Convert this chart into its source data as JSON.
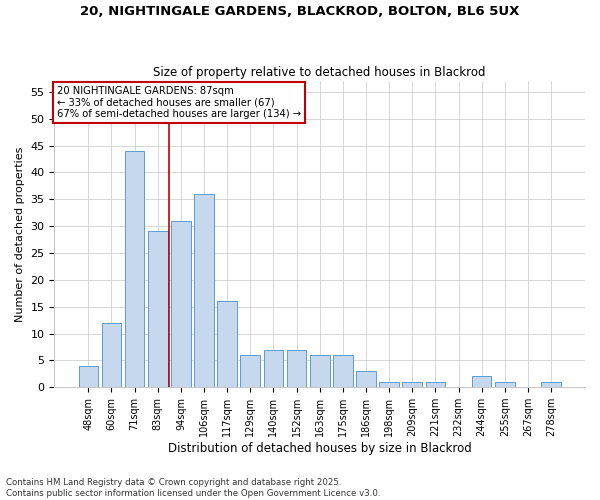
{
  "title1": "20, NIGHTINGALE GARDENS, BLACKROD, BOLTON, BL6 5UX",
  "title2": "Size of property relative to detached houses in Blackrod",
  "xlabel": "Distribution of detached houses by size in Blackrod",
  "ylabel": "Number of detached properties",
  "categories": [
    "48sqm",
    "60sqm",
    "71sqm",
    "83sqm",
    "94sqm",
    "106sqm",
    "117sqm",
    "129sqm",
    "140sqm",
    "152sqm",
    "163sqm",
    "175sqm",
    "186sqm",
    "198sqm",
    "209sqm",
    "221sqm",
    "232sqm",
    "244sqm",
    "255sqm",
    "267sqm",
    "278sqm"
  ],
  "values": [
    4,
    12,
    44,
    29,
    31,
    36,
    16,
    6,
    7,
    7,
    6,
    6,
    3,
    1,
    1,
    1,
    0,
    2,
    1,
    0,
    1
  ],
  "bar_color": "#c5d8ed",
  "bar_edge_color": "#5b9bd5",
  "vline_x": 3.5,
  "vline_color": "#c00000",
  "annotation_title": "20 NIGHTINGALE GARDENS: 87sqm",
  "annotation_line1": "← 33% of detached houses are smaller (67)",
  "annotation_line2": "67% of semi-detached houses are larger (134) →",
  "annotation_box_color": "#c00000",
  "ylim": [
    0,
    57
  ],
  "yticks": [
    0,
    5,
    10,
    15,
    20,
    25,
    30,
    35,
    40,
    45,
    50,
    55
  ],
  "footnote1": "Contains HM Land Registry data © Crown copyright and database right 2025.",
  "footnote2": "Contains public sector information licensed under the Open Government Licence v3.0.",
  "background_color": "#ffffff",
  "grid_color": "#c8c8c8"
}
